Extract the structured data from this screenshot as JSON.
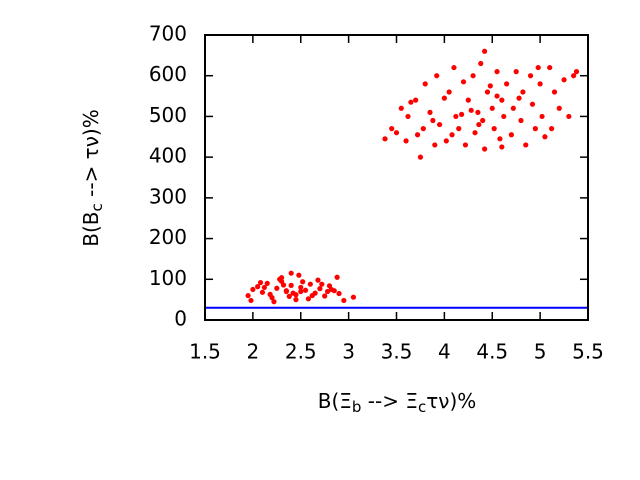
{
  "chart_data": {
    "type": "scatter",
    "xlabel": [
      "B(Ξ",
      "b",
      " --> Ξ",
      "c",
      "τν)%"
    ],
    "ylabel": [
      "B(B",
      "c",
      " --> τν)%"
    ],
    "xlim": [
      1.5,
      5.5
    ],
    "ylim": [
      0,
      700
    ],
    "xticks": [
      1.5,
      2,
      2.5,
      3,
      3.5,
      4,
      4.5,
      5,
      5.5
    ],
    "yticks": [
      0,
      100,
      200,
      300,
      400,
      500,
      600,
      700
    ],
    "hline": {
      "value": 30,
      "color": "#0000ff"
    },
    "series": [
      {
        "color": "#ff0000",
        "x": [
          1.95,
          2.0,
          2.05,
          2.1,
          2.15,
          2.2,
          2.25,
          2.3,
          2.35,
          2.4,
          2.45,
          2.5,
          2.55,
          2.6,
          2.65,
          2.7,
          2.75,
          2.8,
          2.85,
          2.9,
          1.98,
          2.08,
          2.18,
          2.28,
          2.38,
          2.48,
          2.58,
          2.68,
          2.78,
          2.88,
          2.12,
          2.22,
          2.32,
          2.42,
          2.52,
          2.62,
          2.72,
          2.82,
          2.4,
          2.45,
          2.5,
          2.35,
          3.05,
          2.95,
          2.3
        ],
        "values": [
          60,
          75,
          82,
          68,
          90,
          55,
          78,
          95,
          70,
          85,
          62,
          80,
          73,
          88,
          66,
          77,
          59,
          84,
          72,
          65,
          48,
          92,
          63,
          100,
          58,
          110,
          52,
          98,
          70,
          105,
          80,
          45,
          86,
          66,
          94,
          60,
          88,
          75,
          115,
          50,
          70,
          72,
          56,
          48,
          104
        ]
      },
      {
        "color": "#ff0000",
        "x": [
          3.38,
          3.45,
          3.5,
          3.55,
          3.6,
          3.62,
          3.7,
          3.72,
          3.78,
          3.8,
          3.85,
          3.9,
          3.92,
          3.95,
          4.0,
          4.02,
          4.05,
          4.1,
          4.12,
          4.15,
          4.2,
          4.22,
          4.25,
          4.3,
          4.32,
          4.35,
          4.38,
          4.4,
          4.42,
          4.45,
          4.48,
          4.5,
          4.52,
          4.55,
          4.58,
          4.6,
          4.62,
          4.65,
          4.7,
          4.72,
          4.75,
          4.8,
          4.82,
          4.85,
          4.9,
          4.92,
          4.95,
          5.0,
          5.02,
          5.05,
          5.1,
          5.15,
          5.2,
          5.25,
          5.3,
          5.35,
          5.38,
          3.65,
          3.75,
          3.88,
          4.08,
          4.28,
          4.42,
          4.6,
          4.78,
          4.98,
          5.12,
          4.18,
          4.36,
          4.55
        ],
        "values": [
          445,
          470,
          460,
          520,
          440,
          500,
          540,
          455,
          470,
          580,
          510,
          430,
          600,
          480,
          545,
          440,
          560,
          620,
          500,
          470,
          585,
          430,
          540,
          600,
          460,
          510,
          630,
          490,
          420,
          560,
          575,
          520,
          470,
          610,
          445,
          540,
          500,
          580,
          455,
          520,
          610,
          490,
          560,
          430,
          600,
          530,
          470,
          580,
          500,
          450,
          620,
          560,
          520,
          590,
          500,
          600,
          610,
          535,
          400,
          490,
          455,
          515,
          660,
          425,
          545,
          620,
          470,
          505,
          480,
          550
        ]
      }
    ]
  }
}
